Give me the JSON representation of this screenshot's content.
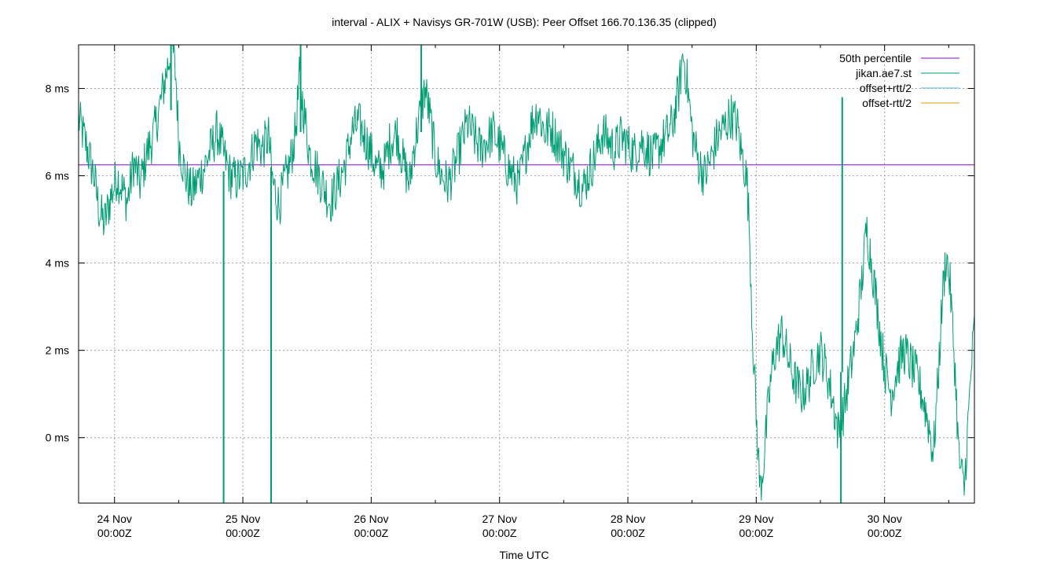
{
  "chart_data": {
    "type": "line",
    "title": "interval - ALIX + Navisys GR-701W (USB): Peer Offset 166.70.136.35 (clipped)",
    "xlabel": "Time UTC",
    "ylabel": "",
    "xlim_days": [
      23.72,
      30.7
    ],
    "ylim_ms": [
      -1.5,
      9.0
    ],
    "y_ticks": [
      {
        "value": 0,
        "label": "0 ms"
      },
      {
        "value": 2,
        "label": "2 ms"
      },
      {
        "value": 4,
        "label": "4 ms"
      },
      {
        "value": 6,
        "label": "6 ms"
      },
      {
        "value": 8,
        "label": "8 ms"
      }
    ],
    "x_ticks": [
      {
        "value": 24,
        "line1": "24 Nov",
        "line2": "00:00Z"
      },
      {
        "value": 25,
        "line1": "25 Nov",
        "line2": "00:00Z"
      },
      {
        "value": 26,
        "line1": "26 Nov",
        "line2": "00:00Z"
      },
      {
        "value": 27,
        "line1": "27 Nov",
        "line2": "00:00Z"
      },
      {
        "value": 28,
        "line1": "28 Nov",
        "line2": "00:00Z"
      },
      {
        "value": 29,
        "line1": "29 Nov",
        "line2": "00:00Z"
      },
      {
        "value": 30,
        "line1": "30 Nov",
        "line2": "00:00Z"
      }
    ],
    "grid": true,
    "legend_position": "top-right",
    "legend": [
      {
        "label": "50th percentile",
        "color": "#9400d3"
      },
      {
        "label": "jikan.ae7.st",
        "color": "#009e73"
      },
      {
        "label": "offset+rtt/2",
        "color": "#56b4e9"
      },
      {
        "label": "offset-rtt/2",
        "color": "#e69f00"
      }
    ],
    "percentile_50_ms": 6.25,
    "series": [
      {
        "name": "jikan.ae7.st",
        "color": "#009e73",
        "points": [
          [
            23.72,
            7.3
          ],
          [
            23.78,
            6.7
          ],
          [
            23.84,
            6.0
          ],
          [
            23.88,
            5.2
          ],
          [
            23.92,
            4.9
          ],
          [
            23.97,
            5.5
          ],
          [
            24.02,
            6.0
          ],
          [
            24.06,
            5.7
          ],
          [
            24.1,
            5.4
          ],
          [
            24.15,
            6.3
          ],
          [
            24.2,
            5.8
          ],
          [
            24.25,
            6.5
          ],
          [
            24.3,
            6.9
          ],
          [
            24.34,
            7.4
          ],
          [
            24.38,
            8.0
          ],
          [
            24.42,
            8.6
          ],
          [
            24.45,
            9.0
          ],
          [
            24.48,
            8.2
          ],
          [
            24.5,
            6.8
          ],
          [
            24.55,
            6.0
          ],
          [
            24.6,
            5.6
          ],
          [
            24.65,
            5.9
          ],
          [
            24.7,
            6.2
          ],
          [
            24.75,
            6.6
          ],
          [
            24.8,
            7.0
          ],
          [
            24.85,
            6.5
          ],
          [
            24.9,
            6.0
          ],
          [
            24.95,
            5.9
          ],
          [
            25.0,
            6.0
          ],
          [
            25.05,
            6.3
          ],
          [
            25.1,
            6.8
          ],
          [
            25.15,
            6.6
          ],
          [
            25.2,
            6.9
          ],
          [
            25.23,
            5.9
          ],
          [
            25.28,
            5.3
          ],
          [
            25.32,
            5.8
          ],
          [
            25.37,
            6.3
          ],
          [
            25.41,
            7.0
          ],
          [
            25.44,
            8.2
          ],
          [
            25.47,
            7.6
          ],
          [
            25.52,
            6.5
          ],
          [
            25.58,
            6.1
          ],
          [
            25.62,
            5.8
          ],
          [
            25.68,
            5.4
          ],
          [
            25.74,
            5.8
          ],
          [
            25.8,
            6.3
          ],
          [
            25.85,
            7.0
          ],
          [
            25.9,
            7.2
          ],
          [
            25.95,
            6.9
          ],
          [
            26.0,
            6.5
          ],
          [
            26.05,
            6.1
          ],
          [
            26.1,
            6.2
          ],
          [
            26.15,
            6.8
          ],
          [
            26.2,
            7.0
          ],
          [
            26.25,
            6.3
          ],
          [
            26.3,
            5.8
          ],
          [
            26.33,
            6.6
          ],
          [
            26.38,
            7.4
          ],
          [
            26.42,
            8.0
          ],
          [
            26.46,
            7.3
          ],
          [
            26.5,
            6.4
          ],
          [
            26.55,
            6.0
          ],
          [
            26.6,
            5.8
          ],
          [
            26.65,
            6.2
          ],
          [
            26.7,
            6.7
          ],
          [
            26.75,
            7.2
          ],
          [
            26.8,
            6.9
          ],
          [
            26.85,
            6.6
          ],
          [
            26.9,
            6.8
          ],
          [
            26.95,
            7.0
          ],
          [
            27.0,
            6.7
          ],
          [
            27.05,
            6.3
          ],
          [
            27.1,
            6.0
          ],
          [
            27.15,
            5.8
          ],
          [
            27.2,
            6.5
          ],
          [
            27.25,
            7.2
          ],
          [
            27.3,
            7.5
          ],
          [
            27.35,
            7.0
          ],
          [
            27.4,
            7.1
          ],
          [
            27.45,
            6.8
          ],
          [
            27.5,
            6.5
          ],
          [
            27.55,
            6.2
          ],
          [
            27.6,
            6.0
          ],
          [
            27.65,
            5.7
          ],
          [
            27.7,
            6.1
          ],
          [
            27.75,
            6.5
          ],
          [
            27.8,
            7.0
          ],
          [
            27.85,
            6.8
          ],
          [
            27.9,
            6.6
          ],
          [
            27.95,
            6.9
          ],
          [
            28.0,
            6.7
          ],
          [
            28.05,
            6.5
          ],
          [
            28.1,
            6.8
          ],
          [
            28.15,
            6.6
          ],
          [
            28.2,
            6.4
          ],
          [
            28.25,
            6.7
          ],
          [
            28.3,
            6.9
          ],
          [
            28.35,
            7.2
          ],
          [
            28.4,
            8.0
          ],
          [
            28.43,
            8.8
          ],
          [
            28.46,
            8.2
          ],
          [
            28.5,
            7.0
          ],
          [
            28.55,
            6.3
          ],
          [
            28.6,
            6.0
          ],
          [
            28.65,
            6.4
          ],
          [
            28.7,
            6.9
          ],
          [
            28.75,
            7.1
          ],
          [
            28.8,
            7.4
          ],
          [
            28.85,
            7.2
          ],
          [
            28.88,
            6.6
          ],
          [
            28.91,
            6.2
          ],
          [
            28.93,
            5.8
          ],
          [
            28.95,
            4.5
          ],
          [
            28.97,
            2.5
          ],
          [
            29.0,
            0.5
          ],
          [
            29.03,
            -1.2
          ],
          [
            29.06,
            -0.5
          ],
          [
            29.09,
            0.6
          ],
          [
            29.12,
            1.5
          ],
          [
            29.15,
            2.0
          ],
          [
            29.2,
            2.4
          ],
          [
            29.25,
            1.8
          ],
          [
            29.3,
            1.3
          ],
          [
            29.35,
            1.0
          ],
          [
            29.4,
            1.2
          ],
          [
            29.45,
            1.7
          ],
          [
            29.5,
            2.0
          ],
          [
            29.55,
            1.5
          ],
          [
            29.6,
            0.8
          ],
          [
            29.64,
            0.1
          ],
          [
            29.68,
            0.6
          ],
          [
            29.72,
            1.3
          ],
          [
            29.77,
            2.2
          ],
          [
            29.82,
            3.5
          ],
          [
            29.86,
            4.8
          ],
          [
            29.9,
            4.0
          ],
          [
            29.95,
            2.8
          ],
          [
            30.0,
            1.6
          ],
          [
            30.05,
            1.0
          ],
          [
            30.1,
            1.6
          ],
          [
            30.15,
            2.0
          ],
          [
            30.2,
            1.7
          ],
          [
            30.25,
            1.4
          ],
          [
            30.3,
            0.9
          ],
          [
            30.35,
            0.2
          ],
          [
            30.38,
            -0.4
          ],
          [
            30.42,
            1.5
          ],
          [
            30.45,
            3.2
          ],
          [
            30.48,
            4.2
          ],
          [
            30.51,
            3.5
          ],
          [
            30.55,
            1.5
          ],
          [
            30.58,
            -0.5
          ],
          [
            30.62,
            -1.2
          ],
          [
            30.65,
            0.3
          ],
          [
            30.68,
            1.8
          ],
          [
            30.7,
            2.5
          ]
        ],
        "spikes": [
          {
            "x": 24.85,
            "from": 6.1,
            "to": -1.5
          },
          {
            "x": 25.22,
            "from": 6.2,
            "to": -1.5
          },
          {
            "x": 29.66,
            "from": 1.5,
            "to": -1.5
          },
          {
            "x": 29.67,
            "from": 1.5,
            "to": 7.8
          },
          {
            "x": 25.45,
            "from": 7.0,
            "to": 9.0
          },
          {
            "x": 26.39,
            "from": 7.0,
            "to": 9.0
          },
          {
            "x": 24.44,
            "from": 7.5,
            "to": 9.0
          }
        ]
      }
    ]
  }
}
